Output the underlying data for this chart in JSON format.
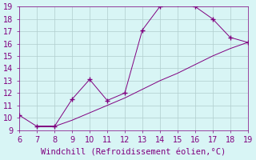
{
  "x": [
    6,
    7,
    8,
    9,
    10,
    11,
    12,
    13,
    14,
    15,
    16,
    17,
    18,
    19,
    18,
    17,
    16,
    15,
    14,
    13,
    12,
    11,
    10,
    9,
    8,
    7
  ],
  "y": [
    10.2,
    9.3,
    9.3,
    11.5,
    13.1,
    11.4,
    12.0,
    17.1,
    19.0,
    19.2,
    19.0,
    18.0,
    16.5,
    16.1,
    15.6,
    15.0,
    14.3,
    13.6,
    13.0,
    12.3,
    11.6,
    11.0,
    10.4,
    9.8,
    9.3,
    9.3
  ],
  "line_color": "#800080",
  "marker": "+",
  "marker_size": 4,
  "background_color": "#d8f5f5",
  "grid_color": "#b0cece",
  "xlabel": "Windchill (Refroidissement éolien,°C)",
  "xlabel_color": "#800080",
  "xlim": [
    6,
    19
  ],
  "ylim": [
    9,
    19
  ],
  "xticks": [
    6,
    7,
    8,
    9,
    10,
    11,
    12,
    13,
    14,
    15,
    16,
    17,
    18,
    19
  ],
  "yticks": [
    9,
    10,
    11,
    12,
    13,
    14,
    15,
    16,
    17,
    18,
    19
  ],
  "tick_color": "#800080",
  "tick_fontsize": 7,
  "xlabel_fontsize": 7.5
}
